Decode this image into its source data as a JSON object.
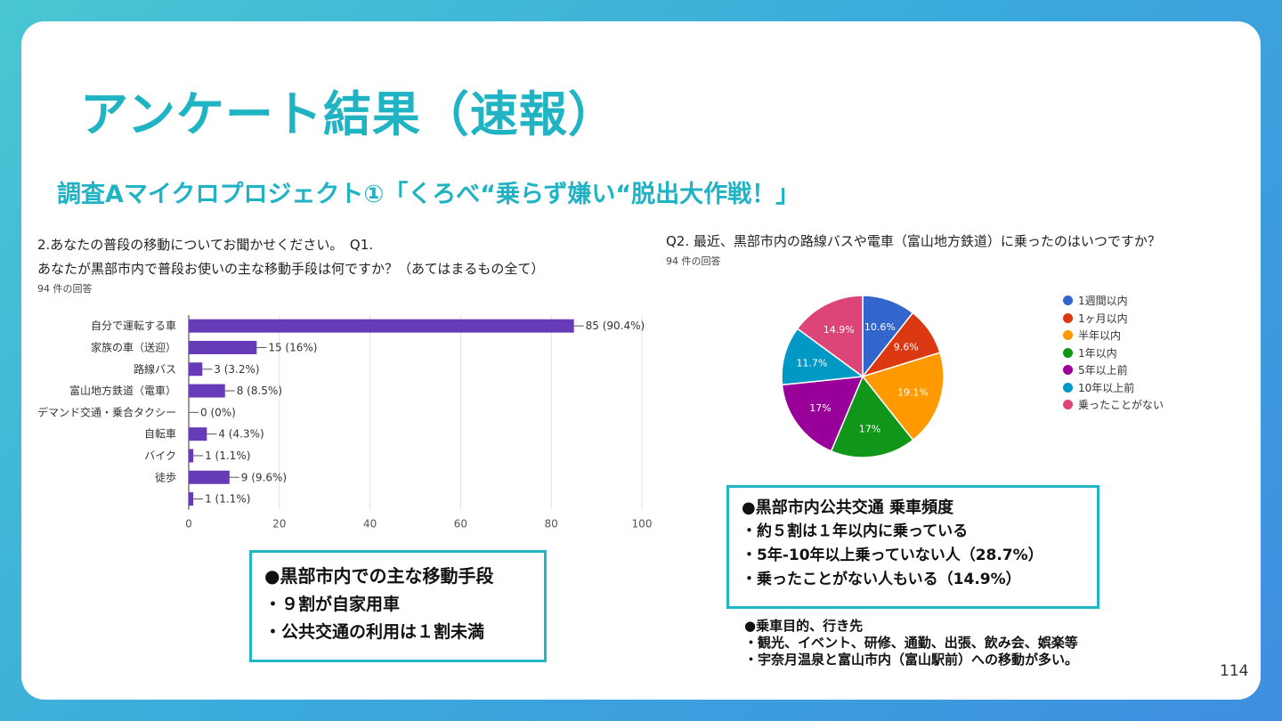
{
  "title": "アンケート結果（速報）",
  "subtitle": "調査Aマイクロプロジェクト①「くろべ“乗らず嫌い“脱出大作戦！」",
  "q1": {
    "question_line1": "2.あなたの普段の移動についてお聞かせください。　Q1.",
    "question_line2": "あなたが黒部市内で普段お使いの主な移動手段は何ですか？（あてはまるもの全て）",
    "count": "94 件の回答"
  },
  "q2": {
    "question": "Q2. 最近、黒部市内の路線バスや電車（富山地方鉄道）に乗ったのはいつですか？",
    "count": "94 件の回答"
  },
  "chart_data": [
    {
      "type": "bar",
      "orientation": "horizontal",
      "categories": [
        "自分で運転する車",
        "家族の車（送迎）",
        "路線バス",
        "富山地方鉄道（電車）",
        "デマンド交通・乗合タクシー",
        "自転車",
        "バイク",
        "徒歩",
        ""
      ],
      "values": [
        85,
        15,
        3,
        8,
        0,
        4,
        1,
        9,
        1
      ],
      "data_labels": [
        "85 (90.4%)",
        "15 (16%)",
        "3 (3.2%)",
        "8 (8.5%)",
        "0 (0%)",
        "4 (4.3%)",
        "1 (1.1%)",
        "9 (9.6%)",
        "1 (1.1%)"
      ],
      "xlim": [
        0,
        100
      ],
      "xticks": [
        "0",
        "20",
        "40",
        "60",
        "80",
        "100"
      ],
      "grid": true,
      "color": "#673ab7"
    },
    {
      "type": "pie",
      "categories": [
        "1週間以内",
        "1ヶ月以内",
        "半年以内",
        "1年以内",
        "5年以上前",
        "10年以上前",
        "乗ったことがない"
      ],
      "values": [
        10.6,
        9.6,
        19.1,
        17,
        17,
        11.7,
        14.9
      ],
      "slice_labels": [
        "10.6%",
        "9.6%",
        "19.1%",
        "17%",
        "17%",
        "11.7%",
        "14.9%"
      ],
      "colors": [
        "#3366cc",
        "#dc3912",
        "#ff9900",
        "#109618",
        "#990099",
        "#0099c6",
        "#dd4477"
      ],
      "legend": "right"
    }
  ],
  "box1": {
    "heading": "●黒部市内での主な移動手段",
    "line1": "・９割が自家用車",
    "line2": "・公共交通の利用は１割未満"
  },
  "box2": {
    "heading": "●黒部市内公共交通 乗車頻度",
    "line1": "・約５割は１年以内に乗っている",
    "line2": "・5年-10年以上乗っていない人（28.7%）",
    "line3": "・乗ったことがない人もいる（14.9%）"
  },
  "notes": {
    "heading": "●乗車目的、行き先",
    "line1": "・観光、イベント、研修、通勤、出張、飲み会、娯楽等",
    "line2": "・宇奈月温泉と富山市内（富山駅前）への移動が多い。"
  },
  "page_number": "114"
}
